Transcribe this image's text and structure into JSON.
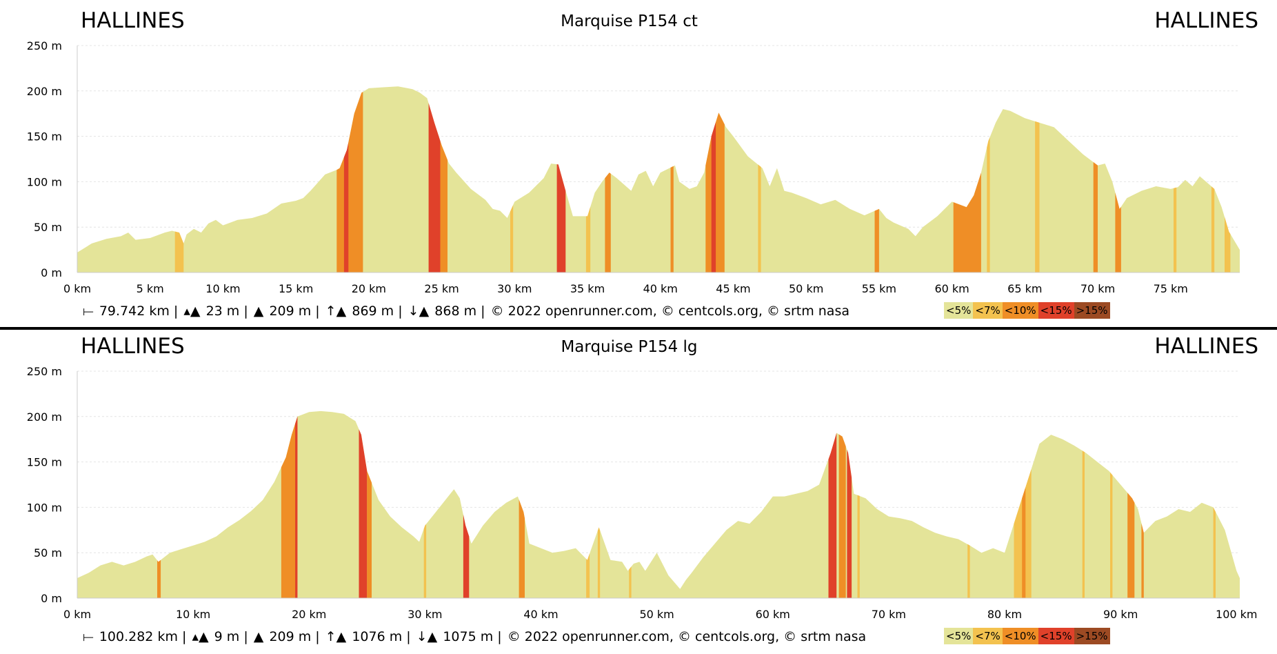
{
  "colors": {
    "lt5": "#e4e499",
    "lt7": "#f3c24f",
    "lt10": "#ef8e26",
    "lt15": "#e0412a",
    "gt15": "#9c4a23"
  },
  "legend": [
    {
      "label": "<5%",
      "color": "#e4e499"
    },
    {
      "label": "<7%",
      "color": "#f3c24f"
    },
    {
      "label": "<10%",
      "color": "#ef8e26"
    },
    {
      "label": "<15%",
      "color": "#e0412a"
    },
    {
      "label": ">15%",
      "color": "#9c4a23"
    }
  ],
  "charts": [
    {
      "start": "HALLINES",
      "end": "HALLINES",
      "title": "Marquise P154 ct",
      "stats": {
        "distance": "79.742 km |",
        "min": "23 m |",
        "max": "209 m |",
        "ascent": "869 m |",
        "descent": "868 m |",
        "credits": "© 2022 openrunner.com, © centcols.org, © srtm nasa"
      }
    },
    {
      "start": "HALLINES",
      "end": "HALLINES",
      "title": "Marquise P154 lg",
      "stats": {
        "distance": "100.282 km |",
        "min": "9 m |",
        "max": "209 m |",
        "ascent": "1076 m |",
        "descent": "1075 m |",
        "credits": "© 2022 openrunner.com, © centcols.org, © srtm nasa"
      }
    }
  ],
  "chart_data": [
    {
      "type": "area",
      "title": "Marquise P154 ct",
      "xlabel": "",
      "ylabel": "",
      "xlim": [
        0,
        79.742
      ],
      "ylim": [
        0,
        250
      ],
      "xticks": [
        0,
        5,
        10,
        15,
        20,
        25,
        30,
        35,
        40,
        45,
        50,
        55,
        60,
        65,
        70,
        75
      ],
      "xtick_labels": [
        "0 km",
        "5 km",
        "10 km",
        "15 km",
        "20 km",
        "25 km",
        "30 km",
        "35 km",
        "40 km",
        "45 km",
        "50 km",
        "55 km",
        "60 km",
        "65 km",
        "70 km",
        "75 km"
      ],
      "yticks": [
        0,
        50,
        100,
        150,
        200,
        250
      ],
      "ytick_labels": [
        "0 m",
        "50 m",
        "100 m",
        "150 m",
        "200 m",
        "250 m"
      ],
      "grid": true,
      "elevation": [
        [
          0,
          22
        ],
        [
          1,
          32
        ],
        [
          2,
          37
        ],
        [
          3,
          40
        ],
        [
          3.5,
          44
        ],
        [
          4,
          36
        ],
        [
          5,
          38
        ],
        [
          6,
          44
        ],
        [
          6.5,
          46
        ],
        [
          7,
          44
        ],
        [
          7.3,
          32
        ],
        [
          7.5,
          42
        ],
        [
          8,
          48
        ],
        [
          8.5,
          44
        ],
        [
          9,
          54
        ],
        [
          9.5,
          58
        ],
        [
          10,
          52
        ],
        [
          11,
          58
        ],
        [
          12,
          60
        ],
        [
          13,
          65
        ],
        [
          14,
          76
        ],
        [
          15,
          79
        ],
        [
          15.5,
          82
        ],
        [
          16,
          90
        ],
        [
          17,
          108
        ],
        [
          17.8,
          113
        ],
        [
          18,
          115
        ],
        [
          18.5,
          135
        ],
        [
          19,
          175
        ],
        [
          19.5,
          198
        ],
        [
          20,
          203
        ],
        [
          21,
          204
        ],
        [
          22,
          205
        ],
        [
          23,
          202
        ],
        [
          23.5,
          198
        ],
        [
          24,
          192
        ],
        [
          24.5,
          165
        ],
        [
          25,
          140
        ],
        [
          25.5,
          120
        ],
        [
          26,
          110
        ],
        [
          27,
          92
        ],
        [
          28,
          80
        ],
        [
          28.5,
          70
        ],
        [
          29,
          68
        ],
        [
          29.5,
          60
        ],
        [
          30,
          78
        ],
        [
          31,
          88
        ],
        [
          32,
          104
        ],
        [
          32.5,
          120
        ],
        [
          33,
          119
        ],
        [
          33.5,
          90
        ],
        [
          34,
          62
        ],
        [
          35,
          62
        ],
        [
          35.5,
          88
        ],
        [
          36,
          100
        ],
        [
          36.5,
          110
        ],
        [
          37,
          104
        ],
        [
          38,
          90
        ],
        [
          38.5,
          108
        ],
        [
          39,
          112
        ],
        [
          39.5,
          95
        ],
        [
          40,
          110
        ],
        [
          41,
          118
        ],
        [
          41.3,
          100
        ],
        [
          42,
          92
        ],
        [
          42.5,
          95
        ],
        [
          43,
          110
        ],
        [
          43.5,
          150
        ],
        [
          44,
          176
        ],
        [
          44.5,
          160
        ],
        [
          45,
          150
        ],
        [
          46,
          128
        ],
        [
          47,
          115
        ],
        [
          47.5,
          95
        ],
        [
          48,
          115
        ],
        [
          48.5,
          90
        ],
        [
          49,
          88
        ],
        [
          50,
          82
        ],
        [
          51,
          75
        ],
        [
          52,
          80
        ],
        [
          53,
          70
        ],
        [
          54,
          63
        ],
        [
          55,
          70
        ],
        [
          55.5,
          60
        ],
        [
          56,
          55
        ],
        [
          57,
          48
        ],
        [
          57.5,
          40
        ],
        [
          58,
          50
        ],
        [
          59,
          62
        ],
        [
          60,
          78
        ],
        [
          61,
          72
        ],
        [
          61.5,
          85
        ],
        [
          62,
          110
        ],
        [
          62.5,
          145
        ],
        [
          63,
          165
        ],
        [
          63.5,
          180
        ],
        [
          64,
          178
        ],
        [
          65,
          170
        ],
        [
          66,
          165
        ],
        [
          67,
          160
        ],
        [
          68,
          145
        ],
        [
          69,
          130
        ],
        [
          70,
          118
        ],
        [
          70.5,
          120
        ],
        [
          71,
          100
        ],
        [
          71.5,
          70
        ],
        [
          72,
          82
        ],
        [
          73,
          90
        ],
        [
          74,
          95
        ],
        [
          75,
          92
        ],
        [
          75.5,
          94
        ],
        [
          76,
          102
        ],
        [
          76.5,
          95
        ],
        [
          77,
          106
        ],
        [
          78,
          92
        ],
        [
          78.5,
          72
        ],
        [
          79,
          45
        ],
        [
          79.742,
          25
        ]
      ],
      "grade_bands": [
        {
          "from": 6.7,
          "to": 7.3,
          "class": "lt7"
        },
        {
          "from": 17.8,
          "to": 19.6,
          "class": "lt10"
        },
        {
          "from": 18.3,
          "to": 18.6,
          "class": "lt15"
        },
        {
          "from": 24.1,
          "to": 24.9,
          "class": "lt15"
        },
        {
          "from": 24.9,
          "to": 25.4,
          "class": "lt10"
        },
        {
          "from": 29.7,
          "to": 29.9,
          "class": "lt7"
        },
        {
          "from": 32.9,
          "to": 33.5,
          "class": "lt15"
        },
        {
          "from": 34.9,
          "to": 35.2,
          "class": "lt7"
        },
        {
          "from": 36.2,
          "to": 36.6,
          "class": "lt10"
        },
        {
          "from": 40.7,
          "to": 40.9,
          "class": "lt10"
        },
        {
          "from": 43.1,
          "to": 44.4,
          "class": "lt10"
        },
        {
          "from": 43.5,
          "to": 43.8,
          "class": "lt15"
        },
        {
          "from": 46.7,
          "to": 46.9,
          "class": "lt7"
        },
        {
          "from": 54.7,
          "to": 55.0,
          "class": "lt10"
        },
        {
          "from": 60.1,
          "to": 62.0,
          "class": "lt10"
        },
        {
          "from": 62.4,
          "to": 62.6,
          "class": "lt7"
        },
        {
          "from": 65.7,
          "to": 66.0,
          "class": "lt7"
        },
        {
          "from": 69.7,
          "to": 70.0,
          "class": "lt10"
        },
        {
          "from": 71.2,
          "to": 71.6,
          "class": "lt10"
        },
        {
          "from": 75.2,
          "to": 75.4,
          "class": "lt7"
        },
        {
          "from": 77.8,
          "to": 78.0,
          "class": "lt7"
        },
        {
          "from": 78.7,
          "to": 79.1,
          "class": "lt7"
        }
      ]
    },
    {
      "type": "area",
      "title": "Marquise P154 lg",
      "xlabel": "",
      "ylabel": "",
      "xlim": [
        0,
        100.282
      ],
      "ylim": [
        0,
        250
      ],
      "xticks": [
        0,
        10,
        20,
        30,
        40,
        50,
        60,
        70,
        80,
        90,
        100
      ],
      "xtick_labels": [
        "0 km",
        "10 km",
        "20 km",
        "30 km",
        "40 km",
        "50 km",
        "60 km",
        "70 km",
        "80 km",
        "90 km",
        "100 km"
      ],
      "yticks": [
        0,
        50,
        100,
        150,
        200,
        250
      ],
      "ytick_labels": [
        "0 m",
        "50 m",
        "100 m",
        "150 m",
        "200 m",
        "250 m"
      ],
      "grid": true,
      "elevation": [
        [
          0,
          22
        ],
        [
          1,
          28
        ],
        [
          2,
          36
        ],
        [
          3,
          40
        ],
        [
          4,
          36
        ],
        [
          5,
          40
        ],
        [
          6,
          46
        ],
        [
          6.5,
          48
        ],
        [
          7,
          40
        ],
        [
          7.5,
          45
        ],
        [
          8,
          50
        ],
        [
          9,
          54
        ],
        [
          10,
          58
        ],
        [
          11,
          62
        ],
        [
          12,
          68
        ],
        [
          13,
          78
        ],
        [
          14,
          86
        ],
        [
          15,
          96
        ],
        [
          16,
          108
        ],
        [
          17,
          128
        ],
        [
          18,
          155
        ],
        [
          18.5,
          180
        ],
        [
          19,
          200
        ],
        [
          20,
          205
        ],
        [
          21,
          206
        ],
        [
          22,
          205
        ],
        [
          23,
          203
        ],
        [
          24,
          195
        ],
        [
          24.5,
          180
        ],
        [
          25,
          140
        ],
        [
          26,
          108
        ],
        [
          27,
          90
        ],
        [
          28,
          78
        ],
        [
          29,
          68
        ],
        [
          29.5,
          62
        ],
        [
          30,
          80
        ],
        [
          31,
          96
        ],
        [
          32,
          112
        ],
        [
          32.5,
          120
        ],
        [
          33,
          110
        ],
        [
          33.5,
          80
        ],
        [
          34,
          60
        ],
        [
          35,
          80
        ],
        [
          36,
          95
        ],
        [
          37,
          105
        ],
        [
          38,
          112
        ],
        [
          38.5,
          95
        ],
        [
          39,
          60
        ],
        [
          40,
          55
        ],
        [
          41,
          50
        ],
        [
          42,
          52
        ],
        [
          43,
          55
        ],
        [
          44,
          42
        ],
        [
          44.5,
          60
        ],
        [
          45,
          78
        ],
        [
          45.5,
          60
        ],
        [
          46,
          42
        ],
        [
          47,
          40
        ],
        [
          47.5,
          30
        ],
        [
          48,
          38
        ],
        [
          48.5,
          40
        ],
        [
          49,
          30
        ],
        [
          50,
          50
        ],
        [
          51,
          25
        ],
        [
          52,
          10
        ],
        [
          52.5,
          20
        ],
        [
          53,
          28
        ],
        [
          54,
          45
        ],
        [
          55,
          60
        ],
        [
          56,
          75
        ],
        [
          57,
          85
        ],
        [
          58,
          82
        ],
        [
          59,
          95
        ],
        [
          60,
          112
        ],
        [
          61,
          112
        ],
        [
          62,
          115
        ],
        [
          63,
          118
        ],
        [
          64,
          125
        ],
        [
          65,
          160
        ],
        [
          65.5,
          182
        ],
        [
          66,
          178
        ],
        [
          66.5,
          160
        ],
        [
          67,
          115
        ],
        [
          68,
          110
        ],
        [
          69,
          98
        ],
        [
          70,
          90
        ],
        [
          71,
          88
        ],
        [
          72,
          85
        ],
        [
          73,
          78
        ],
        [
          74,
          72
        ],
        [
          75,
          68
        ],
        [
          76,
          65
        ],
        [
          77,
          58
        ],
        [
          78,
          50
        ],
        [
          79,
          55
        ],
        [
          80,
          50
        ],
        [
          81,
          90
        ],
        [
          82,
          130
        ],
        [
          83,
          170
        ],
        [
          84,
          180
        ],
        [
          85,
          175
        ],
        [
          86,
          168
        ],
        [
          87,
          160
        ],
        [
          88,
          150
        ],
        [
          89,
          140
        ],
        [
          90,
          125
        ],
        [
          91,
          110
        ],
        [
          91.5,
          98
        ],
        [
          92,
          72
        ],
        [
          93,
          85
        ],
        [
          94,
          90
        ],
        [
          95,
          98
        ],
        [
          96,
          95
        ],
        [
          97,
          105
        ],
        [
          98,
          100
        ],
        [
          99,
          75
        ],
        [
          100,
          30
        ],
        [
          100.282,
          22
        ]
      ],
      "grade_bands": [
        {
          "from": 6.9,
          "to": 7.2,
          "class": "lt10"
        },
        {
          "from": 17.6,
          "to": 19.0,
          "class": "lt10"
        },
        {
          "from": 18.8,
          "to": 19.0,
          "class": "lt15"
        },
        {
          "from": 24.3,
          "to": 25.0,
          "class": "lt15"
        },
        {
          "from": 25.0,
          "to": 25.4,
          "class": "lt10"
        },
        {
          "from": 29.9,
          "to": 30.1,
          "class": "lt7"
        },
        {
          "from": 33.3,
          "to": 33.8,
          "class": "lt15"
        },
        {
          "from": 38.1,
          "to": 38.6,
          "class": "lt10"
        },
        {
          "from": 43.9,
          "to": 44.2,
          "class": "lt7"
        },
        {
          "from": 44.9,
          "to": 45.1,
          "class": "lt7"
        },
        {
          "from": 47.6,
          "to": 47.8,
          "class": "lt7"
        },
        {
          "from": 64.8,
          "to": 65.5,
          "class": "lt15"
        },
        {
          "from": 65.7,
          "to": 66.3,
          "class": "lt10"
        },
        {
          "from": 66.4,
          "to": 66.8,
          "class": "lt15"
        },
        {
          "from": 67.3,
          "to": 67.5,
          "class": "lt7"
        },
        {
          "from": 76.8,
          "to": 77.0,
          "class": "lt7"
        },
        {
          "from": 80.8,
          "to": 82.3,
          "class": "lt7"
        },
        {
          "from": 81.5,
          "to": 81.8,
          "class": "lt10"
        },
        {
          "from": 86.7,
          "to": 86.9,
          "class": "lt7"
        },
        {
          "from": 89.1,
          "to": 89.3,
          "class": "lt7"
        },
        {
          "from": 90.6,
          "to": 91.2,
          "class": "lt10"
        },
        {
          "from": 91.8,
          "to": 92.0,
          "class": "lt10"
        },
        {
          "from": 98.0,
          "to": 98.2,
          "class": "lt7"
        }
      ]
    }
  ]
}
